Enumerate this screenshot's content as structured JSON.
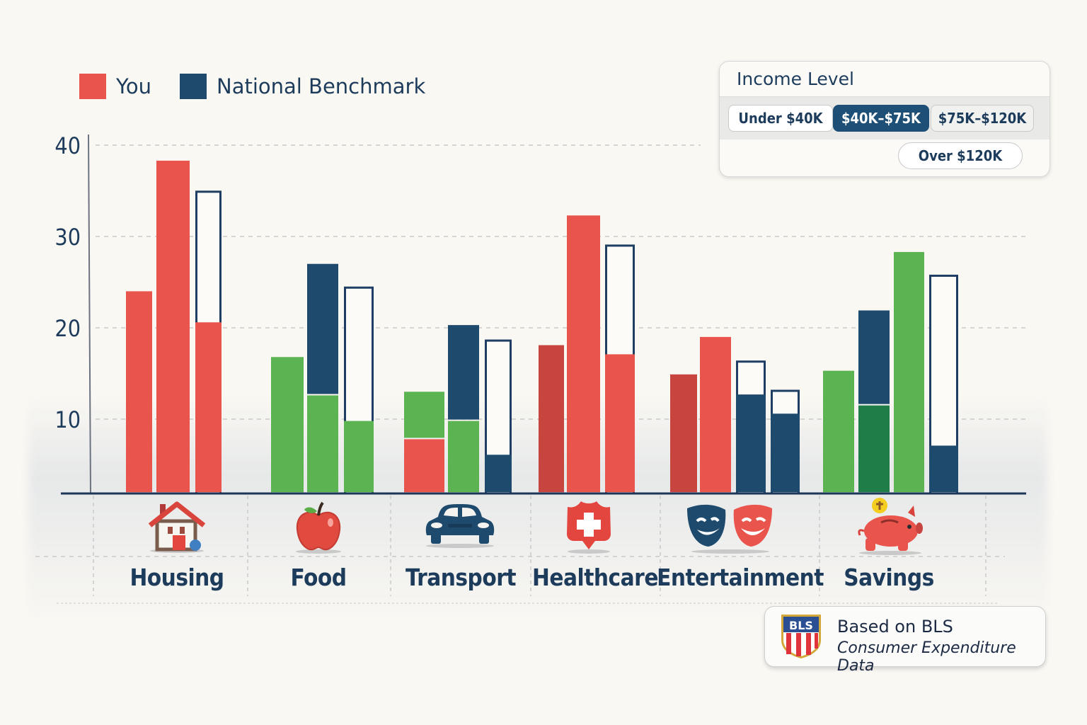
{
  "legend": {
    "items": [
      {
        "label": "You",
        "color": "#e9544c"
      },
      {
        "label": "National Benchmark",
        "color": "#1e4a6d"
      }
    ]
  },
  "income_selector": {
    "title": "Income Level",
    "options": [
      "Under $40K",
      "$40K–$75K",
      "$75K–$120K",
      "Over $120K"
    ],
    "selected": "$40K–$75K"
  },
  "source": {
    "badge": "BLS",
    "line1": "Based on BLS",
    "line2": "Consumer Expenditure Data"
  },
  "colors": {
    "red": "#e9544c",
    "dark_red": "#c8453f",
    "green": "#5cb352",
    "dark_green": "#1f7d48",
    "navy": "#1e4a6d",
    "outline": "#1e3f63",
    "axis": "#1d3557"
  },
  "chart_data": {
    "type": "bar",
    "title": "",
    "xlabel": "",
    "ylabel": "",
    "ylim": [
      2,
      40
    ],
    "yticks": [
      10,
      20,
      30,
      40
    ],
    "grid": true,
    "legend_position": "top-left",
    "categories": [
      "Housing",
      "Food",
      "Transport",
      "Healthcare",
      "Entertainment",
      "Savings"
    ],
    "category_icons": [
      "house-icon",
      "apple-icon",
      "car-icon",
      "medical-shield-icon",
      "theater-masks-icon",
      "piggy-bank-icon"
    ],
    "groups": [
      {
        "category": "Housing",
        "bars": [
          {
            "segments": [
              {
                "from": 2,
                "to": 24,
                "color": "red"
              }
            ]
          },
          {
            "segments": [
              {
                "from": 2,
                "to": 38.3,
                "color": "red"
              }
            ]
          },
          {
            "segments": [
              {
                "from": 2,
                "to": 20.6,
                "color": "red"
              }
            ],
            "outline_to": 34.9
          }
        ]
      },
      {
        "category": "Food",
        "bars": [
          {
            "segments": [
              {
                "from": 2,
                "to": 16.8,
                "color": "green"
              }
            ]
          },
          {
            "segments": [
              {
                "from": 2,
                "to": 12.6,
                "color": "green"
              },
              {
                "from": 12.6,
                "to": 27,
                "color": "navy"
              }
            ]
          },
          {
            "segments": [
              {
                "from": 2,
                "to": 9.8,
                "color": "green"
              }
            ],
            "outline_to": 24.4
          }
        ]
      },
      {
        "category": "Transport",
        "bars": [
          {
            "segments": [
              {
                "from": 2,
                "to": 7.8,
                "color": "red"
              },
              {
                "from": 7.8,
                "to": 13,
                "color": "green"
              }
            ]
          },
          {
            "segments": [
              {
                "from": 2,
                "to": 9.8,
                "color": "green"
              },
              {
                "from": 9.8,
                "to": 20.3,
                "color": "navy"
              }
            ]
          },
          {
            "segments": [
              {
                "from": 2,
                "to": 6.1,
                "color": "navy"
              }
            ],
            "outline_to": 18.6
          }
        ]
      },
      {
        "category": "Healthcare",
        "bars": [
          {
            "segments": [
              {
                "from": 2,
                "to": 18.1,
                "color": "dark_red"
              }
            ]
          },
          {
            "segments": [
              {
                "from": 2,
                "to": 32.3,
                "color": "red"
              }
            ]
          },
          {
            "segments": [
              {
                "from": 2,
                "to": 17.1,
                "color": "red"
              }
            ],
            "outline_to": 29
          }
        ]
      },
      {
        "category": "Entertainment",
        "bars": [
          {
            "segments": [
              {
                "from": 2,
                "to": 14.9,
                "color": "dark_red"
              }
            ]
          },
          {
            "segments": [
              {
                "from": 2,
                "to": 19,
                "color": "red"
              }
            ]
          },
          {
            "segments": [
              {
                "from": 2,
                "to": 12.7,
                "color": "navy"
              }
            ],
            "outline_to": 16.3
          },
          {
            "segments": [
              {
                "from": 2,
                "to": 10.6,
                "color": "navy"
              }
            ],
            "outline_to": 13.1
          }
        ]
      },
      {
        "category": "Savings",
        "bars": [
          {
            "segments": [
              {
                "from": 2,
                "to": 15.3,
                "color": "green"
              }
            ]
          },
          {
            "segments": [
              {
                "from": 2,
                "to": 11.5,
                "color": "dark_green"
              },
              {
                "from": 11.5,
                "to": 21.9,
                "color": "navy"
              }
            ]
          },
          {
            "segments": [
              {
                "from": 2,
                "to": 28.3,
                "color": "green"
              }
            ]
          },
          {
            "segments": [
              {
                "from": 2,
                "to": 7.1,
                "color": "navy"
              }
            ],
            "outline_to": 25.7
          }
        ]
      }
    ]
  }
}
